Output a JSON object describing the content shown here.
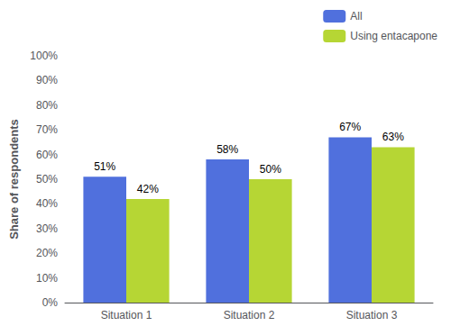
{
  "chart_data": {
    "type": "bar",
    "categories": [
      "Situation 1",
      "Situation 2",
      "Situation 3"
    ],
    "series": [
      {
        "name": "All",
        "values": [
          51,
          58,
          67
        ],
        "value_labels": [
          "51%",
          "58%",
          "67%"
        ]
      },
      {
        "name": "Using entacapone",
        "values": [
          42,
          50,
          63
        ],
        "value_labels": [
          "42%",
          "50%",
          "63%"
        ]
      }
    ],
    "ylabel": "Share of respondents",
    "ylim": [
      0,
      100
    ],
    "yticks": [
      {
        "value": 0,
        "label": "0%"
      },
      {
        "value": 10,
        "label": "10%"
      },
      {
        "value": 20,
        "label": "20%"
      },
      {
        "value": 30,
        "label": "30%"
      },
      {
        "value": 40,
        "label": "40%"
      },
      {
        "value": 50,
        "label": "50%"
      },
      {
        "value": 60,
        "label": "60%"
      },
      {
        "value": 70,
        "label": "70%"
      },
      {
        "value": 80,
        "label": "80%"
      },
      {
        "value": 90,
        "label": "90%"
      },
      {
        "value": 100,
        "label": "100%"
      }
    ],
    "grid": false,
    "legend": "upper right",
    "data_labels": true
  }
}
